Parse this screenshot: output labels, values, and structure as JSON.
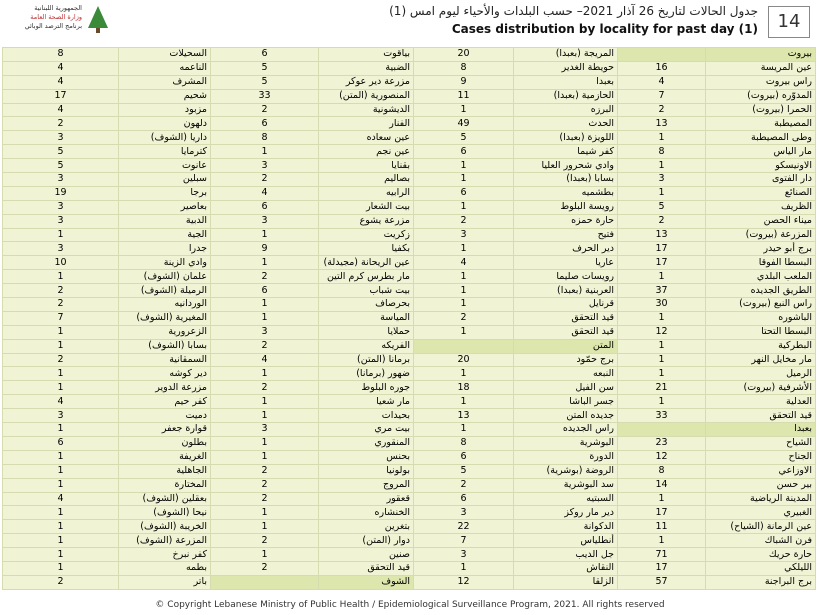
{
  "header": {
    "logo_lines": [
      "الجمهورية اللبنانية",
      "وزارة الصحة العامة",
      "برنامج الترصد الوبائي"
    ],
    "title_ar": "جدول الحالات لتاريخ 26 آذار 2021– حسب البلدات والأحياء ليوم امس (1)",
    "title_en": "Cases distribution by locality for past day (1)",
    "page_number": "14"
  },
  "table": {
    "rows": [
      [
        8,
        "السحيلات",
        6,
        "بياقوت",
        20,
        "المريجة (بعبدا)",
        null,
        "بيروت"
      ],
      [
        4,
        "الناعمه",
        5,
        "الضبية",
        8,
        "حويطة الغدير",
        16,
        "عين المريسة"
      ],
      [
        4,
        "المشرف",
        5,
        "مزرعة دير عوكر",
        9,
        "بعبدا",
        4,
        "راس بيروت"
      ],
      [
        17,
        "شحيم",
        33,
        "المنصورية (المتن)",
        11,
        "الحازمية (بعبدا)",
        7,
        "المدوّره (بيروت)"
      ],
      [
        4,
        "مزبود",
        2,
        "الديشونية",
        1,
        "البرزه",
        2,
        "الحمرا (بيروت)"
      ],
      [
        2,
        "دلهون",
        6,
        "الفنار",
        49,
        "الحدث",
        13,
        "المصيطبة"
      ],
      [
        3,
        "داريا (الشوف)",
        8,
        "عين سعاده",
        5,
        "اللويزة (بعبدا)",
        1,
        "وطى المصيطبة"
      ],
      [
        5,
        "كترمايا",
        1,
        "عين نجم",
        6,
        "كفر شيما",
        8,
        "مار الياس"
      ],
      [
        5,
        "عانوت",
        3,
        "بقنايا",
        1,
        "وادي شحرور العليا",
        1,
        "الاونيسكو"
      ],
      [
        3,
        "سبلين",
        2,
        "بصاليم",
        1,
        "بسابا (بعبدا)",
        3,
        "دار الفتوى"
      ],
      [
        19,
        "برجا",
        4,
        "الرابيه",
        6,
        "بطشميه",
        1,
        "الصنائع"
      ],
      [
        3,
        "بعاصير",
        6,
        "بيت الشعار",
        1,
        "رويسة البلوط",
        5,
        "الظريف"
      ],
      [
        3,
        "الدبية",
        3,
        "مزرعة يشوع",
        2,
        "حارة حمزه",
        2,
        "ميناء الحصن"
      ],
      [
        1,
        "الجية",
        1,
        "زكريت",
        3,
        "فتيح",
        13,
        "المزرعة (بيروت)"
      ],
      [
        3,
        "جدرا",
        9,
        "بكفيا",
        1,
        "دير الحرف",
        17,
        "برج أبو حيدر"
      ],
      [
        10,
        "وادي الزينة",
        1,
        "عين الريحانة (مجيدلة)",
        4,
        "عاريا",
        17,
        "البسطا الفوقا"
      ],
      [
        1,
        "علمان (الشوف)",
        2,
        "مار بطرس كرم التين",
        1,
        "رويسات صليما",
        1,
        "الملعب البلدي"
      ],
      [
        2,
        "الرميلة (الشوف)",
        6,
        "بيت شباب",
        1,
        "العربنية (بعبدا)",
        37,
        "الطريق الجديده"
      ],
      [
        2,
        "الوردانيه",
        1,
        "بحرصاف",
        1,
        "قرنايل",
        30,
        "راس النبع (بيروت)"
      ],
      [
        7,
        "المغيرية (الشوف)",
        1,
        "المياسة",
        2,
        "قيد التحقق",
        1,
        "الباشوره"
      ],
      [
        1,
        "الزعرورية",
        3,
        "حملايا",
        1,
        "قيد التحقق",
        12,
        "البسطا التحتا"
      ],
      [
        1,
        "بسابا (الشوف)",
        2,
        "الفريكه",
        null,
        "المتن",
        1,
        "البطركية"
      ],
      [
        2,
        "السمقانية",
        4,
        "برمانا (المتن)",
        20,
        "برج حمّود",
        1,
        "مار مخايل النهر"
      ],
      [
        1,
        "دير كوشه",
        1,
        "ضهور (برمانا)",
        1,
        "النبعه",
        1,
        "الرميل"
      ],
      [
        1,
        "مزرعة الدوير",
        2,
        "جوره البلوط",
        18,
        "سن الفيل",
        21,
        "الأشرفية (بيروت)"
      ],
      [
        4,
        "كفر حيم",
        1,
        "مار شعيا",
        1,
        "جسر الباشا",
        1,
        "العدلية"
      ],
      [
        3,
        "دميت",
        1,
        "بحيدات",
        13,
        "جديده المتن",
        33,
        "قيد التحقق"
      ],
      [
        1,
        "قوارة جعفر",
        3,
        "بيت مري",
        1,
        "راس الجديده",
        null,
        "بعبدا"
      ],
      [
        6,
        "بطلون",
        1,
        "المنقوري",
        8,
        "البوشرية",
        23,
        "الشياح"
      ],
      [
        1,
        "الغريفة",
        1,
        "بحنس",
        6,
        "الدورة",
        12,
        "الجناح"
      ],
      [
        1,
        "الجاهلية",
        2,
        "بولونيا",
        5,
        "الروضة (بوشرية)",
        8,
        "الاوزاعي"
      ],
      [
        1,
        "المختارة",
        2,
        "المروج",
        2,
        "سد البوشرية",
        14,
        "بير حسن"
      ],
      [
        4,
        "بعقلين (الشوف)",
        2,
        "قعقور",
        6,
        "السبتيه",
        1,
        "المدينة الرياضية"
      ],
      [
        1,
        "نيحا (الشوف)",
        1,
        "الخنشاره",
        3,
        "دير مار روكز",
        17,
        "الغبيري"
      ],
      [
        1,
        "الخريبة (الشوف)",
        1,
        "بتغرين",
        22,
        "الدكوانة",
        11,
        "عين الرمانة (الشياح)"
      ],
      [
        1,
        "المزرعة (الشوف)",
        2,
        "دوار (المتن)",
        7,
        "أنطلياس",
        1,
        "فرن الشباك"
      ],
      [
        1,
        "كفر نبرخ",
        1,
        "صنين",
        3,
        "جل الديب",
        71,
        "حارة حريك"
      ],
      [
        1,
        "بطمه",
        2,
        "قيد التحقق",
        1,
        "النقاش",
        17,
        "الليلكي"
      ],
      [
        2,
        "باتر",
        null,
        "الشوف",
        12,
        "الزلقا",
        57,
        "برج البراجنة"
      ]
    ]
  },
  "footer": "© Copyright Lebanese Ministry of Public Health / Epidemiological Surveillance Program, 2021. All rights reserved"
}
